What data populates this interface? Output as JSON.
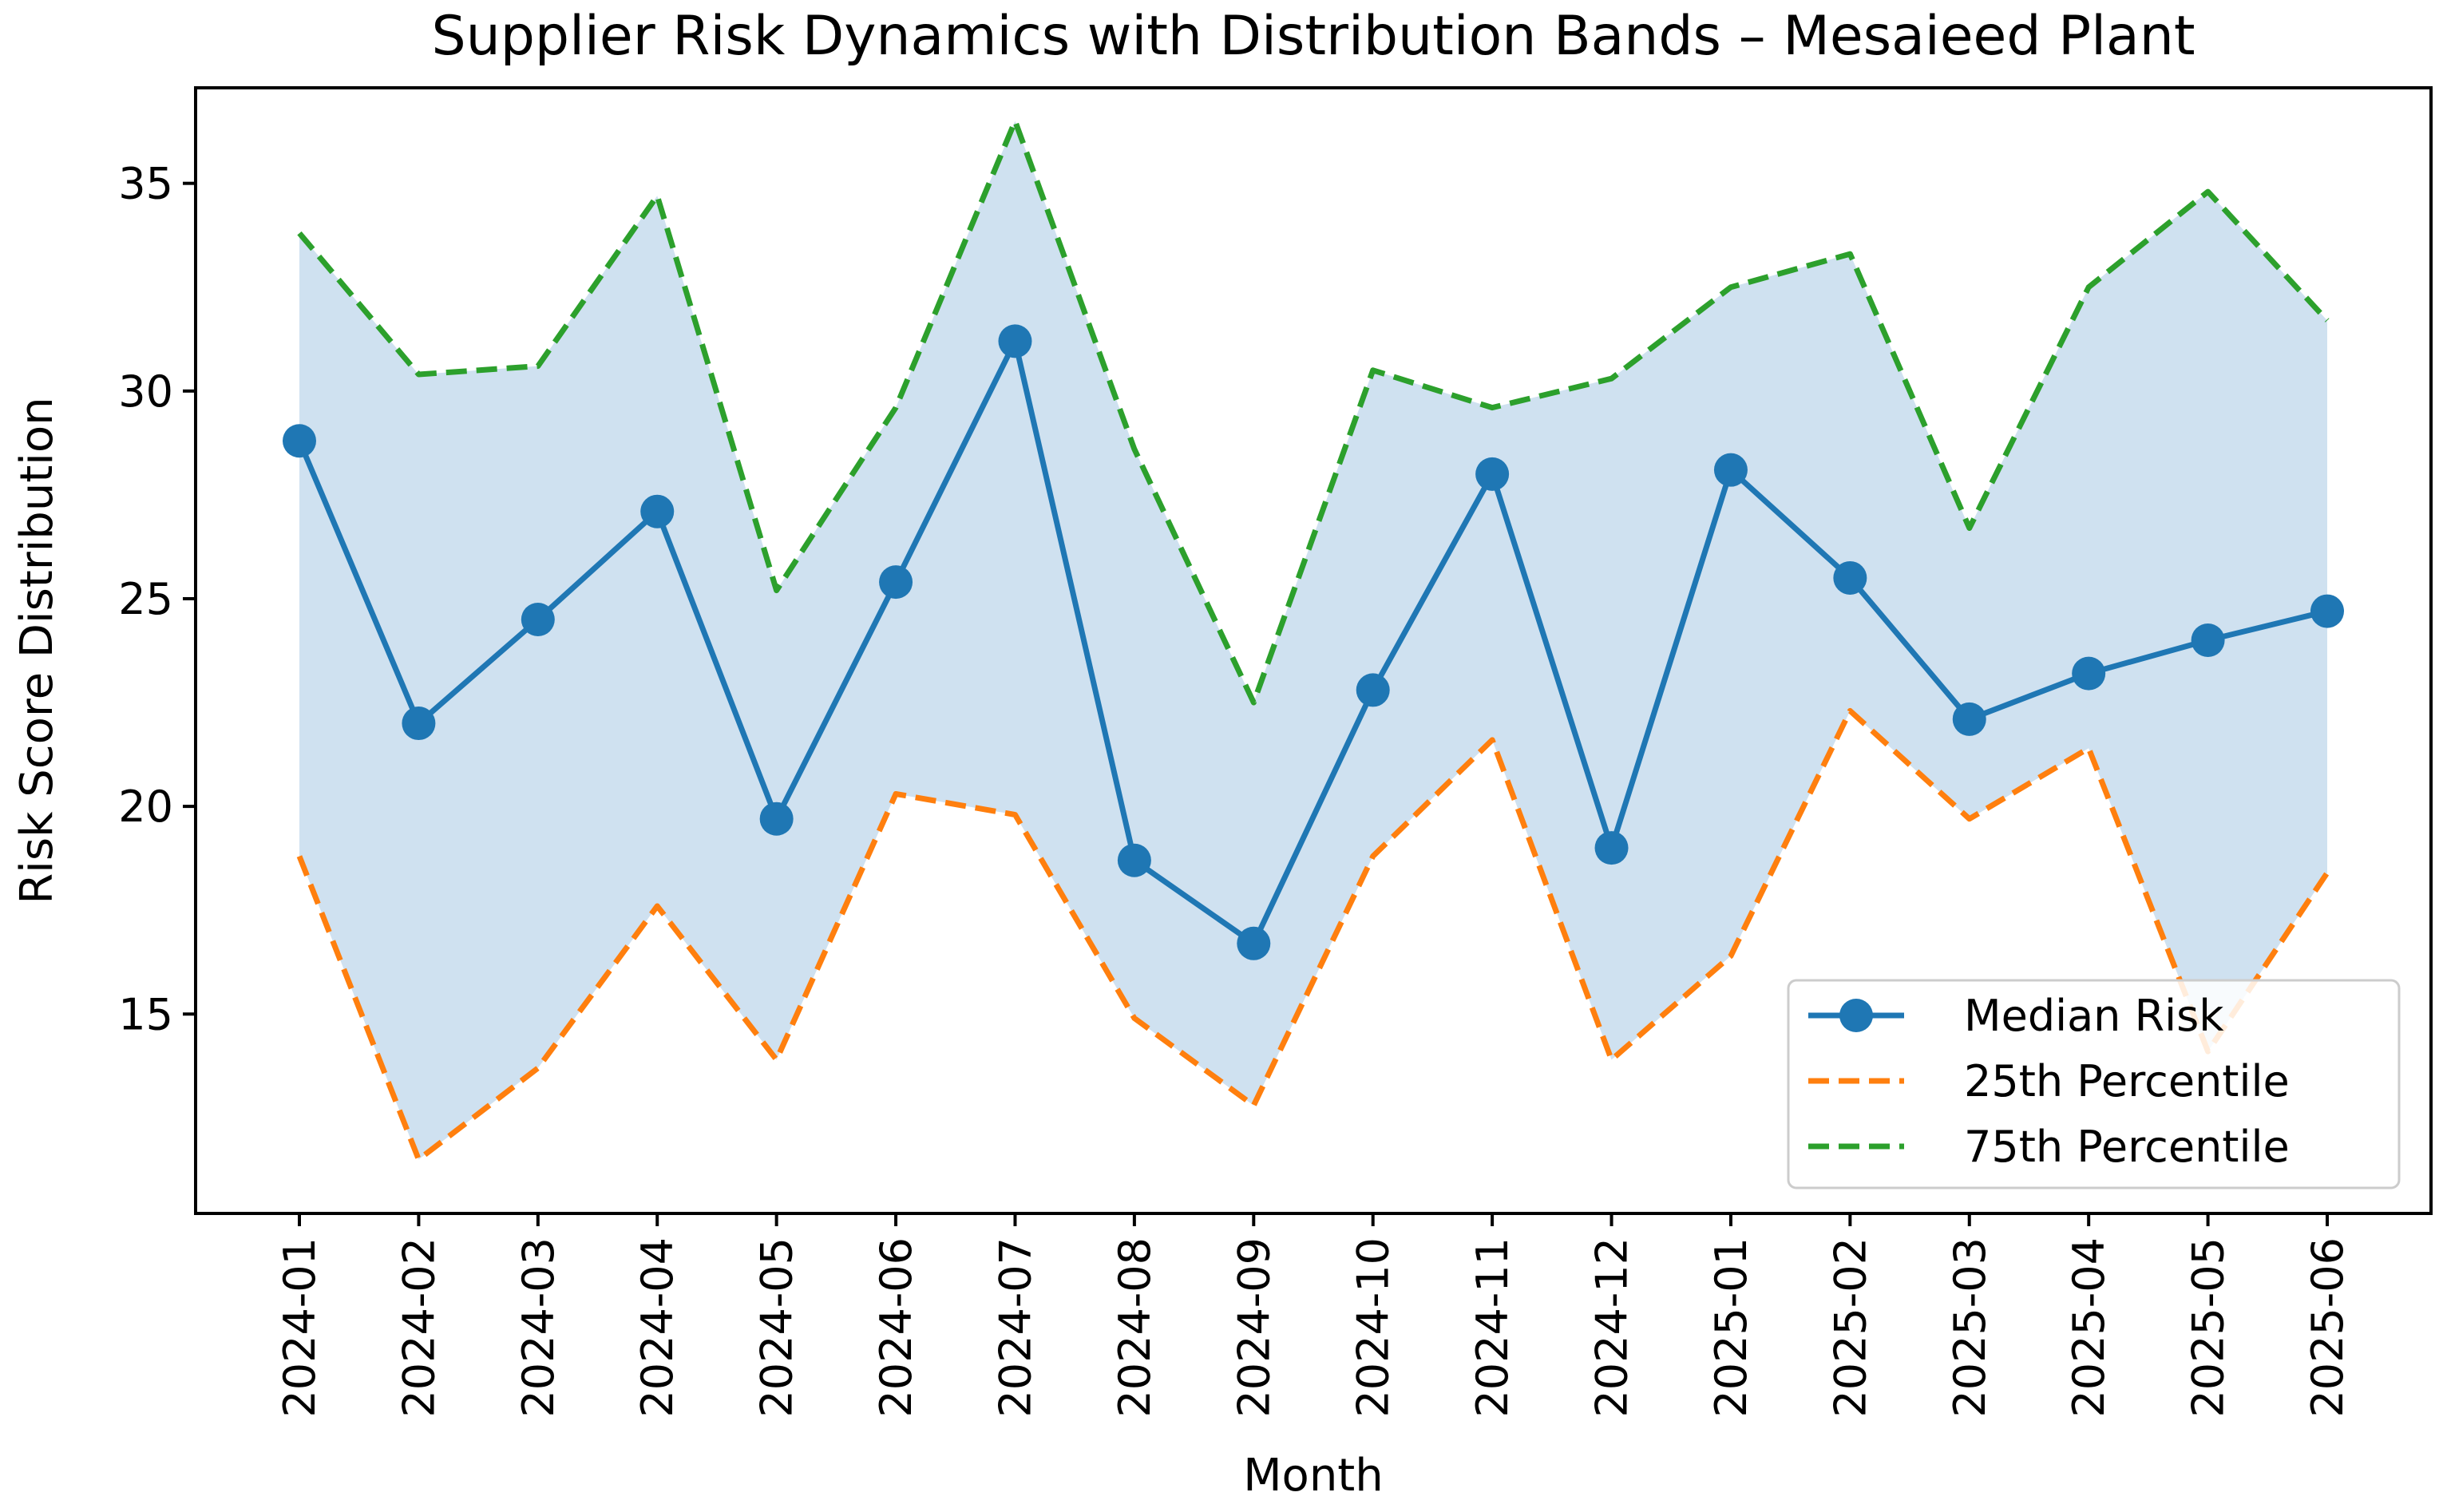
{
  "chart_data": {
    "type": "line",
    "title": "Supplier Risk Dynamics with Distribution Bands – Mesaieed Plant",
    "xlabel": "Month",
    "ylabel": "Risk Score Distribution",
    "categories": [
      "2024-01",
      "2024-02",
      "2024-03",
      "2024-04",
      "2024-05",
      "2024-06",
      "2024-07",
      "2024-08",
      "2024-09",
      "2024-10",
      "2024-11",
      "2024-12",
      "2025-01",
      "2025-02",
      "2025-03",
      "2025-04",
      "2025-05",
      "2025-06"
    ],
    "ylim": [
      10.2,
      37.3
    ],
    "yticks": [
      15,
      20,
      25,
      30,
      35
    ],
    "grid": false,
    "legend_position": "lower-right",
    "band": {
      "lower_series": "25th Percentile",
      "upper_series": "75th Percentile",
      "color": "#cfe1f0"
    },
    "series": [
      {
        "name": "Median Risk",
        "color": "#1f77b4",
        "style": "solid",
        "marker": "circle",
        "values": [
          28.8,
          22.0,
          24.5,
          27.1,
          19.7,
          25.4,
          31.2,
          18.7,
          16.7,
          22.8,
          28.0,
          19.0,
          28.1,
          25.5,
          22.1,
          23.2,
          24.0,
          24.7
        ]
      },
      {
        "name": "25th Percentile",
        "color": "#ff7f0e",
        "style": "dashed",
        "values": [
          18.8,
          11.5,
          13.7,
          17.6,
          13.9,
          20.3,
          19.8,
          14.9,
          12.8,
          18.8,
          21.6,
          13.9,
          16.4,
          22.3,
          19.7,
          21.4,
          14.1,
          18.4
        ]
      },
      {
        "name": "75th Percentile",
        "color": "#2ca02c",
        "style": "dashed",
        "values": [
          33.8,
          30.4,
          30.6,
          34.7,
          25.2,
          29.6,
          36.5,
          28.6,
          22.5,
          30.5,
          29.6,
          30.3,
          32.5,
          33.3,
          26.7,
          32.5,
          34.8,
          31.7
        ]
      }
    ]
  }
}
